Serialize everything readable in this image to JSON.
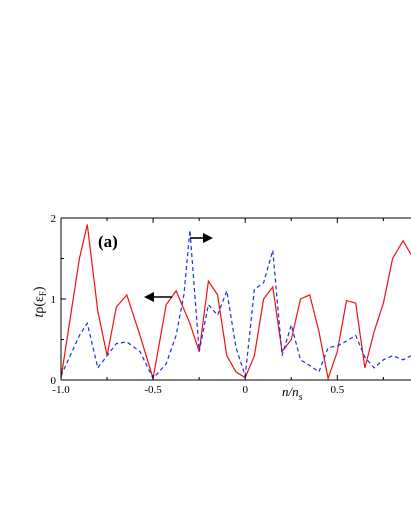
{
  "chart_data": {
    "type": "line",
    "panel_label": "(a)",
    "xlabel_main": "n",
    "xlabel_sub": "/n",
    "xlabel_subscript": "s",
    "ylabel_t": "t",
    "ylabel_rho": "ρ(ε",
    "ylabel_sub": "F",
    "ylabel_close": ")",
    "xlim": [
      -1.0,
      0.9
    ],
    "ylim": [
      0,
      2
    ],
    "x_ticks": [
      "-1.0",
      "-0.5",
      "0",
      "0.5"
    ],
    "y_ticks": [
      "0",
      "1",
      "2"
    ],
    "series": [
      {
        "style": "solid",
        "color": "#ee1111",
        "x": [
          -1.0,
          -0.9,
          -0.857,
          -0.8,
          -0.75,
          -0.7,
          -0.643,
          -0.571,
          -0.5,
          -0.429,
          -0.375,
          -0.3,
          -0.25,
          -0.2,
          -0.15,
          -0.1,
          -0.05,
          0.0,
          0.05,
          0.1,
          0.15,
          0.2,
          0.25,
          0.3,
          0.35,
          0.4,
          0.45,
          0.5,
          0.55,
          0.6,
          0.65,
          0.7,
          0.75,
          0.8,
          0.857,
          0.9
        ],
        "y": [
          0.02,
          1.5,
          1.92,
          0.85,
          0.3,
          0.9,
          1.05,
          0.55,
          0.02,
          0.93,
          1.1,
          0.7,
          0.35,
          1.22,
          1.05,
          0.3,
          0.1,
          0.03,
          0.3,
          1.0,
          1.15,
          0.35,
          0.5,
          1.0,
          1.05,
          0.6,
          0.02,
          0.35,
          0.98,
          0.95,
          0.15,
          0.6,
          0.95,
          1.5,
          1.72,
          1.55
        ]
      },
      {
        "style": "dashed",
        "color": "#1a2ee6",
        "x": [
          -1.0,
          -0.9,
          -0.857,
          -0.8,
          -0.75,
          -0.7,
          -0.643,
          -0.571,
          -0.5,
          -0.429,
          -0.375,
          -0.333,
          -0.3,
          -0.25,
          -0.2,
          -0.15,
          -0.1,
          -0.05,
          0.0,
          0.05,
          0.1,
          0.15,
          0.2,
          0.25,
          0.3,
          0.35,
          0.4,
          0.45,
          0.5,
          0.55,
          0.6,
          0.65,
          0.7,
          0.75,
          0.8,
          0.857,
          0.9
        ],
        "y": [
          0.05,
          0.55,
          0.7,
          0.15,
          0.3,
          0.45,
          0.47,
          0.35,
          0.02,
          0.2,
          0.55,
          1.05,
          1.85,
          0.35,
          0.93,
          0.8,
          1.1,
          0.4,
          0.05,
          1.12,
          1.2,
          1.6,
          0.3,
          0.68,
          0.25,
          0.18,
          0.1,
          0.4,
          0.42,
          0.48,
          0.55,
          0.28,
          0.15,
          0.25,
          0.3,
          0.25,
          0.3
        ]
      }
    ]
  }
}
